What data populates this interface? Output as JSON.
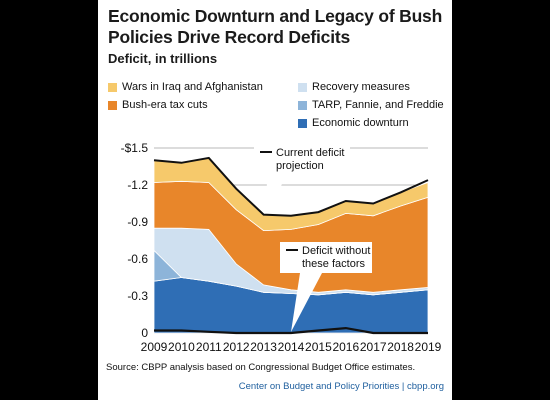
{
  "chart_data": {
    "type": "area",
    "title": "Economic Downturn and Legacy of Bush Policies Drive Record Deficits",
    "subtitle": "Deficit, in trillions",
    "x": [
      2009,
      2010,
      2011,
      2012,
      2013,
      2014,
      2015,
      2016,
      2017,
      2018,
      2019
    ],
    "y_ticks": [
      "-$1.5",
      "-1.2",
      "-0.9",
      "-0.6",
      "-0.3",
      "0"
    ],
    "ylim": [
      0,
      1.5
    ],
    "series": [
      {
        "name": "Economic downturn",
        "color": "#2f6eb5",
        "values": [
          0.42,
          0.45,
          0.42,
          0.38,
          0.33,
          0.32,
          0.31,
          0.33,
          0.31,
          0.33,
          0.35
        ]
      },
      {
        "name": "TARP, Fannie, and Freddie",
        "color": "#8db4d9",
        "values": [
          0.25,
          0.0,
          0.0,
          0.0,
          0.0,
          0.0,
          0.0,
          0.0,
          0.0,
          0.0,
          0.0
        ]
      },
      {
        "name": "Recovery measures",
        "color": "#cfe0f0",
        "values": [
          0.18,
          0.4,
          0.42,
          0.18,
          0.06,
          0.03,
          0.02,
          0.02,
          0.02,
          0.02,
          0.02
        ]
      },
      {
        "name": "Bush-era tax cuts",
        "color": "#e8862a",
        "values": [
          0.37,
          0.38,
          0.38,
          0.44,
          0.44,
          0.49,
          0.55,
          0.62,
          0.62,
          0.68,
          0.73
        ]
      },
      {
        "name": "Wars in Iraq and Afghanistan",
        "color": "#f6c96b",
        "values": [
          0.18,
          0.15,
          0.2,
          0.17,
          0.13,
          0.11,
          0.1,
          0.1,
          0.1,
          0.11,
          0.12
        ]
      }
    ],
    "lines": [
      {
        "name": "Current deficit projection",
        "values": [
          1.4,
          1.38,
          1.42,
          1.17,
          0.96,
          0.95,
          0.98,
          1.07,
          1.05,
          1.14,
          1.24
        ]
      },
      {
        "name": "Deficit without these factors",
        "values": [
          0.02,
          0.02,
          0.01,
          0.0,
          0.0,
          0.0,
          0.02,
          0.04,
          0.0,
          0.0,
          0.0
        ]
      }
    ],
    "annotations": {
      "current": [
        "Current deficit",
        "projection"
      ],
      "without": [
        "Deficit without",
        "these factors"
      ]
    },
    "legend": [
      {
        "label": "Wars in Iraq and Afghanistan",
        "color": "#f6c96b"
      },
      {
        "label": "Recovery measures",
        "color": "#cfe0f0"
      },
      {
        "label": "Bush-era tax cuts",
        "color": "#e8862a"
      },
      {
        "label": "TARP, Fannie, and Freddie",
        "color": "#8db4d9"
      },
      {
        "label": "Economic downturn",
        "color": "#2f6eb5"
      }
    ],
    "source": "Source: CBPP analysis based on Congressional Budget Office estimates.",
    "credit": "Center on Budget and Policy Priorities | cbpp.org"
  }
}
